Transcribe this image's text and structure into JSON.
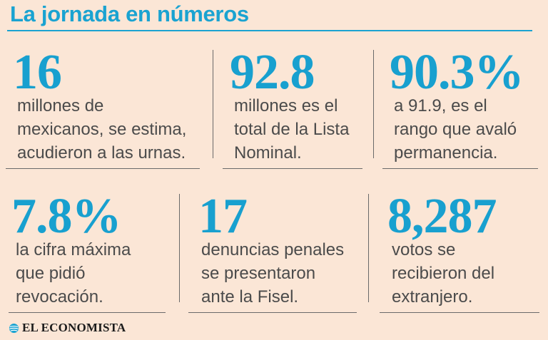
{
  "title": "La jornada en números",
  "stats": [
    {
      "number": "16",
      "lines": [
        "millones de",
        "mexicanos, se estima,",
        "acudieron a las urnas."
      ]
    },
    {
      "number": "92.8",
      "lines": [
        "millones es el",
        "total de la Lista",
        "Nominal."
      ]
    },
    {
      "number": "90.3%",
      "lines": [
        "a 91.9, es el",
        "rango que avaló",
        "permanencia."
      ]
    },
    {
      "number": "7.8%",
      "lines": [
        "la cifra máxima",
        "que pidió",
        "revocación."
      ]
    },
    {
      "number": "17",
      "lines": [
        "denuncias penales",
        "se presentaron",
        "ante la Fisel."
      ]
    },
    {
      "number": "8,287",
      "lines": [
        "votos se",
        "recibieron del",
        "extranjero."
      ]
    }
  ],
  "footer": {
    "brand": "EL ECONOMISTA",
    "logo_icon": "globe-logo-icon"
  },
  "colors": {
    "accent": "#1aa3d1",
    "background": "#fbe6d6",
    "text": "#4b4b4b"
  }
}
